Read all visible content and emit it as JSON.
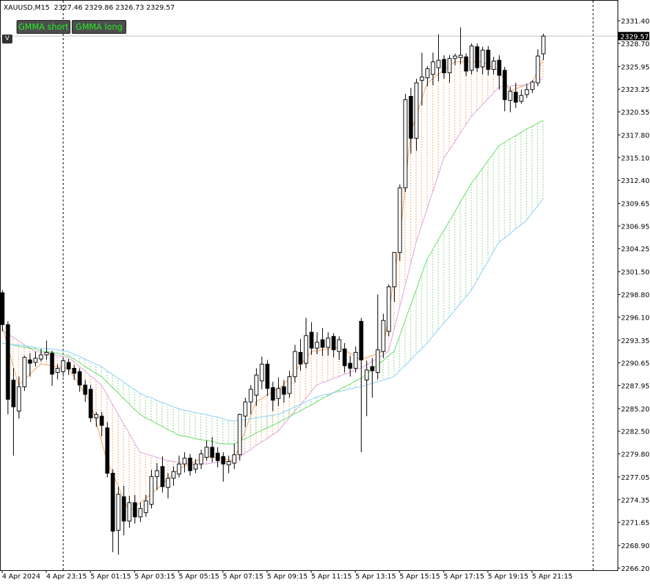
{
  "chart_data": {
    "type": "candlestick",
    "title": "XAUUSD,M15  2327.46 2329.86 2326.73 2329.57",
    "buttons": [
      "GMMA short",
      "GMMA long"
    ],
    "toggle": "V",
    "up_color": "#ffffff",
    "down_color": "#000000",
    "categories": [
      "4 Apr 2024",
      null,
      null,
      null,
      null,
      null,
      null,
      null,
      "4 Apr 23:15",
      null,
      null,
      null,
      null,
      null,
      null,
      null,
      "5 Apr 01:15",
      null,
      null,
      null,
      null,
      null,
      null,
      null,
      "5 Apr 03:15",
      null,
      null,
      null,
      null,
      null,
      null,
      null,
      "5 Apr 05:15",
      null,
      null,
      null,
      null,
      null,
      null,
      null,
      "5 Apr 07:15",
      null,
      null,
      null,
      null,
      null,
      null,
      null,
      "5 Apr 09:15",
      null,
      null,
      null,
      null,
      null,
      null,
      null,
      "5 Apr 11:15",
      null,
      null,
      null,
      null,
      null,
      null,
      null,
      "5 Apr 13:15",
      null,
      null,
      null,
      null,
      null,
      null,
      null,
      "5 Apr 15:15",
      null,
      null,
      null,
      null,
      null,
      null,
      null,
      "5 Apr 17:15",
      null,
      null,
      null,
      null,
      null,
      null,
      null,
      "5 Apr 19:15",
      null,
      null,
      null,
      null,
      null,
      null,
      null,
      "5 Apr 21:15",
      null,
      null
    ],
    "open": [
      2299.0,
      2295.2,
      2288.6,
      2284.9,
      2287.8,
      2291.0,
      2290.7,
      2291.1,
      2291.6,
      2291.8,
      2289.5,
      2289.6,
      2290.7,
      2290.0,
      2289.6,
      2288.0,
      2287.5,
      2284.1,
      2284.3,
      2282.9,
      2277.5,
      2270.7,
      2274.7,
      2271.8,
      2274.0,
      2272.3,
      2272.8,
      2273.8,
      2277.1,
      2278.3,
      2275.8,
      2276.9,
      2277.4,
      2278.6,
      2279.3,
      2278.0,
      2278.6,
      2279.4,
      2280.6,
      2279.9,
      2279.5,
      2278.5,
      2278.7,
      2279.7,
      2284.3,
      2286.0,
      2286.8,
      2288.5,
      2290.5,
      2287.7,
      2286.4,
      2287.8,
      2287.0,
      2289.0,
      2291.9,
      2290.6,
      2294.3,
      2292.4,
      2293.4,
      2292.5,
      2293.8,
      2292.0,
      2292.3,
      2290.6,
      2290.0,
      2295.6,
      2288.6,
      2290.2,
      2289.5,
      2292.0,
      2294.4,
      2299.7,
      2303.8,
      2311.5,
      2322.4,
      2317.4,
      2324.3,
      2324.6,
      2325.0,
      2325.8,
      2326.8,
      2325.2,
      2326.9,
      2327.0,
      2327.1,
      2325.5,
      2328.3,
      2325.9,
      2327.9,
      2325.6,
      2326.7,
      2325.5,
      2321.9,
      2322.9,
      2321.8,
      2322.6,
      2323.2,
      2324.0,
      2327.46
    ],
    "high": [
      2299.3,
      2295.6,
      2290.0,
      2289.0,
      2291.5,
      2291.8,
      2292.0,
      2292.3,
      2293.3,
      2292.1,
      2290.5,
      2291.2,
      2291.1,
      2290.4,
      2290.0,
      2288.6,
      2288.0,
      2284.8,
      2284.8,
      2283.6,
      2278.0,
      2275.9,
      2276.0,
      2274.8,
      2274.9,
      2274.0,
      2274.9,
      2277.9,
      2278.7,
      2279.5,
      2277.5,
      2278.3,
      2279.6,
      2280.0,
      2279.8,
      2279.2,
      2280.3,
      2281.4,
      2281.8,
      2280.6,
      2280.0,
      2279.6,
      2281.0,
      2284.6,
      2286.5,
      2288.0,
      2290.0,
      2291.4,
      2291.0,
      2288.4,
      2288.9,
      2288.6,
      2289.7,
      2292.8,
      2293.5,
      2296.0,
      2295.5,
      2294.3,
      2294.8,
      2294.3,
      2294.2,
      2293.8,
      2293.0,
      2291.5,
      2292.6,
      2296.0,
      2290.9,
      2291.2,
      2298.8,
      2296.5,
      2300.0,
      2303.8,
      2311.9,
      2322.7,
      2323.4,
      2324.5,
      2327.6,
      2326.0,
      2327.6,
      2329.8,
      2327.3,
      2327.3,
      2327.5,
      2330.6,
      2327.5,
      2328.7,
      2328.7,
      2328.3,
      2328.4,
      2327.1,
      2327.3,
      2325.9,
      2323.5,
      2324.0,
      2323.2,
      2323.9,
      2324.3,
      2328.0,
      2329.86
    ],
    "low": [
      2294.4,
      2284.5,
      2279.6,
      2284.0,
      2287.3,
      2289.0,
      2290.2,
      2290.8,
      2291.0,
      2287.9,
      2288.7,
      2289.0,
      2289.2,
      2288.6,
      2287.2,
      2286.0,
      2283.6,
      2283.0,
      2281.9,
      2277.0,
      2268.1,
      2267.8,
      2270.1,
      2271.0,
      2271.5,
      2271.7,
      2272.3,
      2273.3,
      2275.5,
      2275.2,
      2274.5,
      2276.0,
      2277.0,
      2277.6,
      2277.2,
      2277.5,
      2278.0,
      2279.0,
      2278.8,
      2278.2,
      2276.5,
      2277.5,
      2278.0,
      2279.0,
      2283.0,
      2284.5,
      2285.5,
      2287.5,
      2286.7,
      2284.9,
      2285.5,
      2285.9,
      2286.5,
      2288.3,
      2289.7,
      2290.0,
      2291.6,
      2291.7,
      2291.5,
      2291.5,
      2291.3,
      2291.0,
      2289.5,
      2289.0,
      2289.5,
      2280.0,
      2284.3,
      2286.5,
      2288.7,
      2291.2,
      2293.8,
      2297.9,
      2302.8,
      2311.0,
      2315.6,
      2315.9,
      2321.3,
      2323.6,
      2323.7,
      2324.2,
      2324.5,
      2324.0,
      2326.1,
      2326.2,
      2324.8,
      2325.0,
      2325.3,
      2325.0,
      2324.9,
      2325.0,
      2323.2,
      2320.6,
      2320.5,
      2321.0,
      2321.5,
      2322.2,
      2322.8,
      2323.6,
      2326.73
    ],
    "close": [
      2295.2,
      2286.3,
      2285.4,
      2287.8,
      2291.3,
      2290.6,
      2291.2,
      2291.6,
      2291.9,
      2289.3,
      2290.0,
      2290.9,
      2289.9,
      2289.4,
      2288.0,
      2286.9,
      2284.1,
      2284.5,
      2283.2,
      2277.5,
      2270.6,
      2275.0,
      2271.8,
      2274.0,
      2272.3,
      2273.3,
      2274.2,
      2277.1,
      2277.8,
      2275.9,
      2276.9,
      2277.7,
      2278.6,
      2279.3,
      2277.8,
      2278.6,
      2279.8,
      2280.6,
      2279.4,
      2279.0,
      2278.6,
      2278.9,
      2279.7,
      2284.5,
      2286.0,
      2287.5,
      2289.2,
      2290.5,
      2287.6,
      2286.2,
      2287.6,
      2286.9,
      2289.0,
      2292.0,
      2290.5,
      2293.9,
      2292.4,
      2293.1,
      2292.5,
      2293.6,
      2292.2,
      2293.4,
      2290.3,
      2290.0,
      2291.9,
      2291.0,
      2289.8,
      2289.7,
      2292.2,
      2295.7,
      2299.7,
      2303.8,
      2311.5,
      2322.0,
      2317.4,
      2324.0,
      2324.7,
      2325.7,
      2326.5,
      2326.7,
      2325.2,
      2326.9,
      2327.2,
      2327.3,
      2325.4,
      2328.4,
      2325.8,
      2327.9,
      2325.6,
      2326.6,
      2324.9,
      2322.0,
      2323.0,
      2321.7,
      2322.5,
      2323.2,
      2324.1,
      2327.2,
      2329.57
    ],
    "gmma": [
      {
        "hatch_color": "#f4a460",
        "bands": [
          {
            "color": "#f4a460",
            "values": [
              2295.0,
              2292.7,
              2290.3,
              2288.0,
              2288.6,
              2289.3,
              2289.9,
              2290.5,
              2290.4,
              2290.3,
              2290.2,
              2290.1,
              2290.0,
              2289.0,
              2288.0,
              2287.0,
              2286.0,
              2283.7,
              2281.3,
              2279.0,
              2277.5,
              2276.0,
              2274.5,
              2273.0,
              2273.5,
              2274.0,
              2274.5,
              2275.0,
              2275.6,
              2276.2,
              2276.8,
              2277.4,
              2278.0,
              2278.3,
              2278.6,
              2278.9,
              2279.2,
              2279.5,
              2279.4,
              2279.3,
              2279.2,
              2279.1,
              2279.0,
              2280.8,
              2282.5,
              2284.3,
              2286.0,
              2286.4,
              2286.8,
              2287.2,
              2287.6,
              2288.0,
              2288.8,
              2289.6,
              2290.4,
              2291.2,
              2292.0,
              2292.1,
              2292.2,
              2292.3,
              2292.4,
              2292.5,
              2292.1,
              2291.8,
              2291.4,
              2291.0,
              2291.3,
              2291.5,
              2291.8,
              2292.0,
              2296.3,
              2300.7,
              2305.0,
              2311.5,
              2318.0,
              2320.0,
              2322.0,
              2324.0,
              2324.5,
              2325.0,
              2325.5,
              2326.0,
              2326.5,
              2326.5,
              2326.5,
              2326.5,
              2326.5,
              2326.5,
              2326.2,
              2325.8,
              2325.5,
              2324.3,
              2323.0,
              2323.3,
              2323.5,
              2323.8,
              2324.0,
              2325.4,
              2326.8
            ]
          },
          {
            "color": "#dda0dd",
            "values": [
              2294.5,
              2294.1,
              2293.7,
              2293.3,
              2292.8,
              2292.4,
              2292.0,
              2291.9,
              2291.8,
              2291.7,
              2291.5,
              2291.4,
              2291.3,
              2290.8,
              2290.2,
              2289.7,
              2289.1,
              2288.6,
              2288.0,
              2286.9,
              2285.7,
              2284.6,
              2283.4,
              2282.3,
              2281.1,
              2280.0,
              2279.8,
              2279.6,
              2279.4,
              2279.2,
              2279.0,
              2278.9,
              2278.8,
              2278.7,
              2278.6,
              2278.5,
              2278.6,
              2278.6,
              2278.7,
              2278.8,
              2278.9,
              2278.9,
              2279.0,
              2279.4,
              2279.9,
              2280.3,
              2280.8,
              2281.2,
              2281.6,
              2282.1,
              2282.5,
              2283.3,
              2284.1,
              2284.9,
              2285.6,
              2286.4,
              2287.2,
              2288.0,
              2288.3,
              2288.5,
              2288.8,
              2289.0,
              2289.3,
              2289.5,
              2289.8,
              2290.0,
              2290.4,
              2290.8,
              2291.2,
              2291.6,
              2292.0,
              2294.6,
              2297.2,
              2299.8,
              2302.4,
              2305.0,
              2307.0,
              2309.0,
              2311.0,
              2313.0,
              2315.0,
              2316.0,
              2317.0,
              2318.0,
              2319.0,
              2320.0,
              2320.7,
              2321.4,
              2322.1,
              2322.8,
              2323.5,
              2323.6,
              2323.6,
              2323.7,
              2323.7,
              2323.8,
              2324.0,
              2324.3,
              2324.5
            ]
          }
        ]
      },
      {
        "hatch_color": "#7fd67f",
        "bands": [
          {
            "color": "#66dd66",
            "values": [
              2293.0,
              2292.9,
              2292.8,
              2292.6,
              2292.5,
              2292.4,
              2292.3,
              2292.1,
              2292.0,
              2291.9,
              2291.8,
              2291.6,
              2291.5,
              2291.1,
              2290.7,
              2290.2,
              2289.8,
              2289.4,
              2289.0,
              2288.4,
              2287.7,
              2287.1,
              2286.4,
              2285.8,
              2285.1,
              2284.5,
              2284.1,
              2283.8,
              2283.4,
              2283.1,
              2282.7,
              2282.4,
              2282.0,
              2281.9,
              2281.8,
              2281.6,
              2281.5,
              2281.4,
              2281.3,
              2281.1,
              2281.0,
              2281.0,
              2281.0,
              2281.3,
              2281.6,
              2281.9,
              2282.3,
              2282.6,
              2282.9,
              2283.2,
              2283.5,
              2283.9,
              2284.2,
              2284.6,
              2284.9,
              2285.3,
              2285.6,
              2286.0,
              2286.4,
              2286.7,
              2287.1,
              2287.4,
              2287.8,
              2288.1,
              2288.5,
              2288.8,
              2289.3,
              2289.9,
              2290.4,
              2290.9,
              2291.5,
              2292.0,
              2293.8,
              2295.7,
              2297.5,
              2299.3,
              2301.2,
              2303.0,
              2304.1,
              2305.3,
              2306.4,
              2307.5,
              2308.6,
              2309.8,
              2310.9,
              2312.0,
              2312.9,
              2313.8,
              2314.7,
              2315.6,
              2316.5,
              2316.9,
              2317.3,
              2317.7,
              2318.1,
              2318.5,
              2318.8,
              2319.2,
              2319.5
            ]
          },
          {
            "color": "#87cefa",
            "values": [
              2293.0,
              2292.9,
              2292.8,
              2292.8,
              2292.7,
              2292.6,
              2292.5,
              2292.4,
              2292.3,
              2292.3,
              2292.2,
              2292.1,
              2292.0,
              2291.7,
              2291.4,
              2291.1,
              2290.8,
              2290.5,
              2290.2,
              2289.7,
              2289.3,
              2288.8,
              2288.4,
              2287.9,
              2287.5,
              2287.0,
              2286.7,
              2286.5,
              2286.2,
              2285.9,
              2285.7,
              2285.4,
              2285.2,
              2285.0,
              2284.9,
              2284.7,
              2284.6,
              2284.5,
              2284.3,
              2284.2,
              2284.0,
              2283.8,
              2283.7,
              2283.8,
              2283.9,
              2284.0,
              2284.1,
              2284.2,
              2284.3,
              2284.4,
              2284.5,
              2284.8,
              2285.1,
              2285.4,
              2285.7,
              2286.0,
              2286.3,
              2286.6,
              2286.8,
              2286.9,
              2287.1,
              2287.2,
              2287.4,
              2287.5,
              2287.7,
              2287.8,
              2288.0,
              2288.2,
              2288.4,
              2288.6,
              2288.8,
              2289.0,
              2289.7,
              2290.3,
              2291.0,
              2291.7,
              2292.3,
              2293.0,
              2293.8,
              2294.6,
              2295.4,
              2296.1,
              2296.9,
              2297.7,
              2298.5,
              2299.3,
              2300.4,
              2301.6,
              2302.7,
              2303.9,
              2305.0,
              2305.5,
              2306.0,
              2306.6,
              2307.1,
              2307.6,
              2308.5,
              2309.3,
              2310.2
            ]
          }
        ]
      }
    ],
    "ylim": [
      2265.95,
      2333.87
    ],
    "yticks": [
      {
        "value": 2331.4,
        "label": "2331.40"
      },
      {
        "value": 2328.7,
        "label": "2328.70"
      },
      {
        "value": 2325.95,
        "label": "2325.95"
      },
      {
        "value": 2323.25,
        "label": "2323.25"
      },
      {
        "value": 2320.55,
        "label": "2320.55"
      },
      {
        "value": 2317.8,
        "label": "2317.80"
      },
      {
        "value": 2315.1,
        "label": "2315.10"
      },
      {
        "value": 2312.4,
        "label": "2312.40"
      },
      {
        "value": 2309.65,
        "label": "2309.65"
      },
      {
        "value": 2306.95,
        "label": "2306.95"
      },
      {
        "value": 2304.25,
        "label": "2304.25"
      },
      {
        "value": 2301.5,
        "label": "2301.50"
      },
      {
        "value": 2298.8,
        "label": "2298.80"
      },
      {
        "value": 2296.1,
        "label": "2296.10"
      },
      {
        "value": 2293.35,
        "label": "2293.35"
      },
      {
        "value": 2290.65,
        "label": "2290.65"
      },
      {
        "value": 2287.95,
        "label": "2287.95"
      },
      {
        "value": 2285.2,
        "label": "2285.20"
      },
      {
        "value": 2282.5,
        "label": "2282.50"
      },
      {
        "value": 2279.8,
        "label": "2279.80"
      },
      {
        "value": 2277.05,
        "label": "2277.05"
      },
      {
        "value": 2274.35,
        "label": "2274.35"
      },
      {
        "value": 2271.65,
        "label": "2271.65"
      },
      {
        "value": 2268.9,
        "label": "2268.90"
      },
      {
        "value": 2266.2,
        "label": "2266.20"
      }
    ]
  }
}
